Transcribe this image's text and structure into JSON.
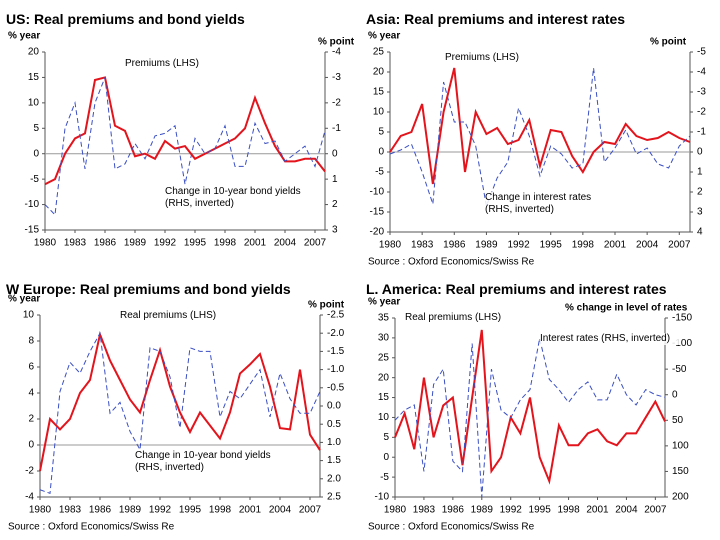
{
  "chart_data": [
    {
      "type": "line",
      "title": "US: Real premiums and bond yields",
      "y_label": "% year",
      "y2_label": "% point",
      "x": [
        1980,
        1981,
        1982,
        1983,
        1984,
        1985,
        1986,
        1987,
        1988,
        1989,
        1990,
        1991,
        1992,
        1993,
        1994,
        1995,
        1996,
        1997,
        1998,
        1999,
        2000,
        2001,
        2002,
        2003,
        2004,
        2005,
        2006,
        2007,
        2008
      ],
      "xlim": [
        1980,
        2008
      ],
      "xticks": [
        1980,
        1983,
        1986,
        1989,
        1992,
        1995,
        1998,
        2001,
        2004,
        2007
      ],
      "ylim": [
        -15,
        20
      ],
      "yticks": [
        -15,
        -10,
        -5,
        0,
        5,
        10,
        15,
        20
      ],
      "y2lim": [
        -4,
        3
      ],
      "y2ticks": [
        -4,
        -3,
        -2,
        -1,
        0,
        1,
        2,
        3
      ],
      "y2_inverted": true,
      "zero_line": true,
      "series": [
        {
          "name": "Premiums (LHS)",
          "color": "#e3141c",
          "line_style": "solid",
          "values": [
            -6,
            -5,
            0,
            3,
            4,
            14.5,
            15,
            5.5,
            4.5,
            -0.5,
            0,
            -1,
            2.5,
            1,
            1.5,
            -1,
            0,
            1,
            2,
            3,
            5,
            11,
            6,
            1.5,
            -1.5,
            -1.5,
            -1,
            -1,
            -3.5
          ]
        },
        {
          "name": "Change in 10-year bond yields (RHS, inverted)",
          "color": "#3a4fc4",
          "line_style": "dashed",
          "axis": "y2",
          "values": [
            2,
            2.4,
            -1,
            -2,
            0.6,
            -2,
            -3,
            0.6,
            0.4,
            -0.4,
            0.2,
            -0.7,
            -0.8,
            -1.1,
            1.2,
            -0.6,
            0,
            -0.2,
            -1.1,
            0.5,
            0.5,
            -1.2,
            -0.4,
            -0.5,
            0.3,
            0,
            -0.3,
            0.5,
            -0.9
          ]
        }
      ]
    },
    {
      "type": "line",
      "title": "Asia: Real premiums and interest rates",
      "y_label": "% year",
      "y2_label": "% point",
      "source": "Source : Oxford Economics/Swiss Re",
      "x": [
        1980,
        1981,
        1982,
        1983,
        1984,
        1985,
        1986,
        1987,
        1988,
        1989,
        1990,
        1991,
        1992,
        1993,
        1994,
        1995,
        1996,
        1997,
        1998,
        1999,
        2000,
        2001,
        2002,
        2003,
        2004,
        2005,
        2006,
        2007,
        2008
      ],
      "xlim": [
        1980,
        2008
      ],
      "xticks": [
        1980,
        1983,
        1986,
        1989,
        1992,
        1995,
        1998,
        2001,
        2004,
        2007
      ],
      "ylim": [
        -20,
        25
      ],
      "yticks": [
        -20,
        -15,
        -10,
        -5,
        0,
        5,
        10,
        15,
        20,
        25
      ],
      "y2lim": [
        -5,
        4
      ],
      "y2ticks": [
        -5,
        -4,
        -3,
        -2,
        -1,
        0,
        1,
        2,
        3,
        4
      ],
      "y2_inverted": true,
      "zero_line": true,
      "series": [
        {
          "name": "Premiums (LHS)",
          "color": "#e3141c",
          "line_style": "solid",
          "values": [
            0,
            4,
            5,
            12,
            -8,
            10,
            21,
            -5,
            10,
            4.5,
            6,
            2,
            3,
            8,
            -3.5,
            5.5,
            5,
            -1,
            -5,
            0,
            2.5,
            2,
            7,
            4,
            3,
            3.5,
            5,
            3.5,
            2.5
          ]
        },
        {
          "name": "Change in interest rates (RHS, inverted)",
          "color": "#3a4fc4",
          "line_style": "dashed",
          "axis": "y2",
          "values": [
            0.1,
            -0.1,
            -0.4,
            1,
            2.6,
            -3.5,
            -1.5,
            -1.5,
            -0.3,
            2.7,
            1.3,
            0.5,
            -2.2,
            -0.8,
            1.2,
            -0.3,
            0.1,
            0.8,
            0.6,
            -4.2,
            0.5,
            -0.2,
            -1.1,
            0.1,
            -0.2,
            0.6,
            0.8,
            -0.3,
            -0.8
          ]
        }
      ]
    },
    {
      "type": "line",
      "title": "W Europe: Real premiums and bond yields",
      "y_label": "% year",
      "y2_label": "% point",
      "source": "Source : Oxford Economics/Swiss Re",
      "x": [
        1980,
        1981,
        1982,
        1983,
        1984,
        1985,
        1986,
        1987,
        1988,
        1989,
        1990,
        1991,
        1992,
        1993,
        1994,
        1995,
        1996,
        1997,
        1998,
        1999,
        2000,
        2001,
        2002,
        2003,
        2004,
        2005,
        2006,
        2007,
        2008
      ],
      "xlim": [
        1980,
        2008
      ],
      "xticks": [
        1980,
        1983,
        1986,
        1989,
        1992,
        1995,
        1998,
        2001,
        2004,
        2007
      ],
      "ylim": [
        -4,
        10
      ],
      "yticks": [
        -4,
        -2,
        0,
        2,
        4,
        6,
        8,
        10
      ],
      "y2lim": [
        -2.5,
        2.5
      ],
      "y2ticks": [
        -2.5,
        {
          "value": -2,
          "label": "-2.0"
        },
        -1.5,
        {
          "value": -1,
          "label": "-1.0"
        },
        -0.5,
        {
          "value": 0,
          "label": "0.0"
        },
        0.5,
        {
          "value": 1,
          "label": "1.0"
        },
        1.5,
        {
          "value": 2,
          "label": "2.0"
        },
        2.5
      ],
      "y2_inverted": true,
      "zero_line": true,
      "series": [
        {
          "name": "Real premiums (LHS)",
          "color": "#e3141c",
          "line_style": "solid",
          "values": [
            -2,
            2,
            1.2,
            2,
            4,
            5,
            8.5,
            6.5,
            5,
            3.5,
            2.5,
            5,
            7.3,
            4.5,
            2.5,
            1,
            2.5,
            1.5,
            0.5,
            2.5,
            5.5,
            6.2,
            7,
            4.5,
            1.3,
            1.2,
            5.8,
            0.8,
            -0.4
          ]
        },
        {
          "name": "Change in 10-year bond yields (RHS, inverted)",
          "color": "#3a4fc4",
          "line_style": "dashed",
          "axis": "y2",
          "values": [
            2.3,
            2.4,
            -0.4,
            -1.2,
            -0.9,
            -1.5,
            -2,
            0.2,
            -0.1,
            0.7,
            1.2,
            -1.6,
            -1.5,
            -0.8,
            0.6,
            -1.6,
            -1.5,
            -1.5,
            0.3,
            -0.4,
            -0.2,
            -0.6,
            -1,
            0.3,
            -0.9,
            -0.2,
            0.2,
            0.2,
            -0.4
          ]
        }
      ]
    },
    {
      "type": "line",
      "title": "L. America: Real premiums and interest rates",
      "y_label": "% year",
      "y2_label": "% change in level of rates",
      "source": "Source : Oxford Economics/Swiss Re",
      "x": [
        1980,
        1981,
        1982,
        1983,
        1984,
        1985,
        1986,
        1987,
        1988,
        1989,
        1990,
        1991,
        1992,
        1993,
        1994,
        1995,
        1996,
        1997,
        1998,
        1999,
        2000,
        2001,
        2002,
        2003,
        2004,
        2005,
        2006,
        2007,
        2008
      ],
      "xlim": [
        1980,
        2008
      ],
      "xticks": [
        1980,
        1983,
        1986,
        1989,
        1992,
        1995,
        1998,
        2001,
        2004,
        2007
      ],
      "ylim": [
        -10,
        35
      ],
      "yticks": [
        -10,
        -5,
        0,
        5,
        10,
        15,
        20,
        25,
        30,
        35
      ],
      "y2lim": [
        -150,
        200
      ],
      "y2ticks": [
        -150,
        -100,
        -50,
        0,
        50,
        100,
        150,
        200
      ],
      "y2_inverted": true,
      "zero_line": false,
      "series": [
        {
          "name": "Real premiums (LHS)",
          "color": "#e3141c",
          "line_style": "solid",
          "values": [
            5,
            11,
            2,
            20,
            5,
            13,
            15,
            -2,
            15,
            32,
            -3.5,
            0,
            10,
            6,
            15,
            0,
            -6,
            8,
            3,
            3,
            6,
            7,
            4,
            3,
            6,
            6,
            10,
            14,
            9
          ]
        },
        {
          "name": "Interest rates (RHS, inverted)",
          "color": "#3a4fc4",
          "line_style": "dashed",
          "axis": "y2",
          "values": [
            50,
            30,
            20,
            150,
            -20,
            -50,
            130,
            150,
            -100,
            200,
            -50,
            30,
            45,
            10,
            -10,
            -110,
            -30,
            -10,
            15,
            -10,
            -25,
            10,
            10,
            -40,
            0,
            20,
            -10,
            0,
            5
          ]
        }
      ]
    }
  ]
}
